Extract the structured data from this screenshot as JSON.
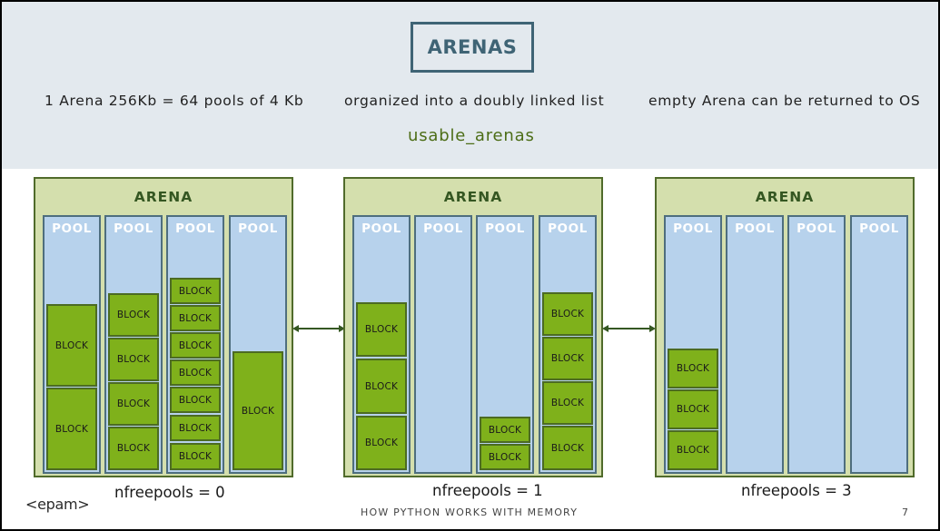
{
  "header": {
    "title": "ARENAS",
    "facts": [
      "1 Arena 256Kb = 64 pools of 4 Kb",
      "organized into a doubly linked list",
      "empty Arena can be returned to OS"
    ],
    "list_name": "usable_arenas"
  },
  "arena_label": "ARENA",
  "pool_label": "POOL",
  "block_label": "BLOCK",
  "arenas": [
    {
      "label": "ARENA",
      "nfreepools": "nfreepools = 0"
    },
    {
      "label": "ARENA",
      "nfreepools": "nfreepools = 1"
    },
    {
      "label": "ARENA",
      "nfreepools": "nfreepools = 3"
    }
  ],
  "colors": {
    "header_bg": "#e3e9ee",
    "arena_bg": "#d4dfad",
    "pool_bg": "#b7d2ec",
    "block_bg": "#7fb11b",
    "accent_title": "#3f6475",
    "list_name": "#4c6d16"
  },
  "footer": {
    "logo": "<epam>",
    "title": "HOW PYTHON WORKS WITH MEMORY",
    "page": "7"
  }
}
